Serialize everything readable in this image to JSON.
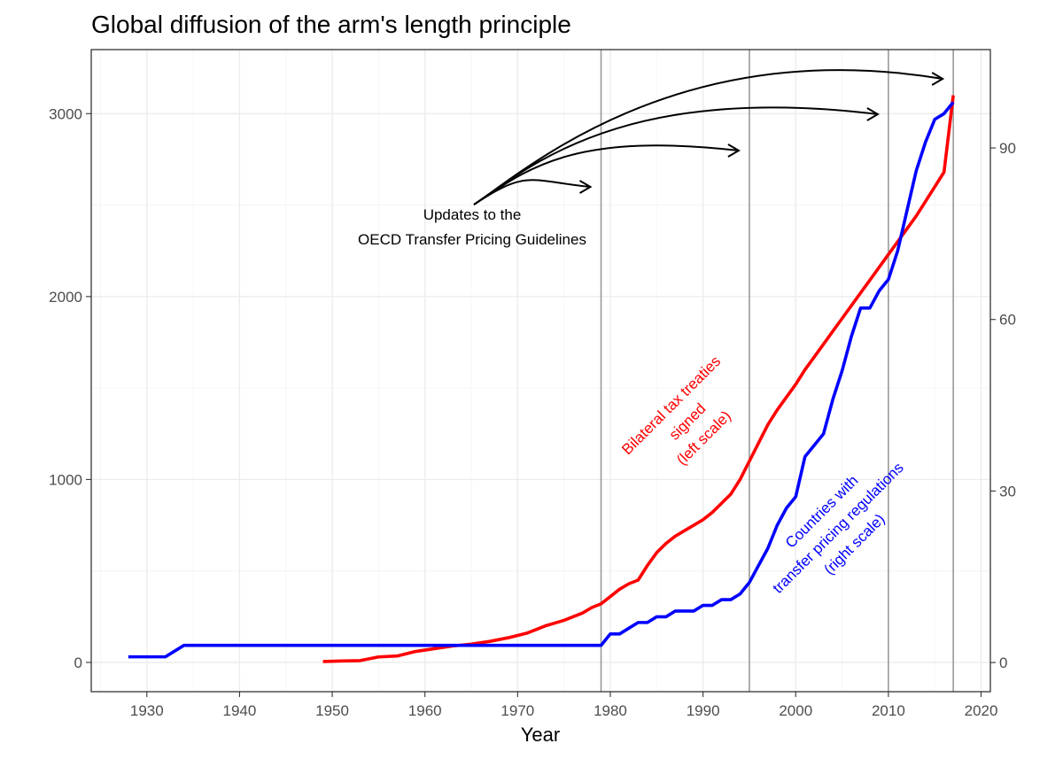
{
  "chart_data": {
    "type": "line",
    "title": "Global diffusion of the arm's length principle",
    "xlabel": "Year",
    "ylabel_left": "",
    "ylabel_right": "",
    "xlim": [
      1924,
      2021
    ],
    "ylim_left": [
      -160,
      3350
    ],
    "ylim_right": [
      -5.1,
      107.2
    ],
    "x_ticks": [
      1930,
      1940,
      1950,
      1960,
      1970,
      1980,
      1990,
      2000,
      2010,
      2020
    ],
    "y_left_ticks": [
      0,
      1000,
      2000,
      3000
    ],
    "y_right_ticks": [
      0,
      30,
      60,
      90
    ],
    "grid": true,
    "vertical_lines": [
      1979,
      1995,
      2010,
      2017
    ],
    "series": [
      {
        "name": "Bilateral tax treaties signed (left scale)",
        "axis": "left",
        "color": "#ff0000",
        "x": [
          1949,
          1951,
          1953,
          1955,
          1957,
          1959,
          1961,
          1963,
          1965,
          1967,
          1969,
          1971,
          1972,
          1973,
          1974,
          1975,
          1976,
          1977,
          1978,
          1979,
          1980,
          1981,
          1982,
          1983,
          1984,
          1985,
          1986,
          1987,
          1988,
          1989,
          1990,
          1991,
          1992,
          1993,
          1994,
          1995,
          1996,
          1997,
          1998,
          1999,
          2000,
          2001,
          2002,
          2003,
          2004,
          2005,
          2006,
          2007,
          2008,
          2009,
          2010,
          2011,
          2012,
          2013,
          2014,
          2015,
          2016,
          2017
        ],
        "values": [
          5,
          8,
          10,
          30,
          35,
          60,
          75,
          90,
          100,
          115,
          135,
          160,
          180,
          200,
          215,
          230,
          250,
          270,
          300,
          320,
          360,
          400,
          430,
          450,
          530,
          600,
          650,
          690,
          720,
          750,
          780,
          820,
          870,
          920,
          1000,
          1100,
          1200,
          1300,
          1380,
          1450,
          1520,
          1600,
          1670,
          1740,
          1810,
          1880,
          1950,
          2020,
          2090,
          2160,
          2230,
          2300,
          2370,
          2440,
          2520,
          2600,
          2680,
          3100
        ]
      },
      {
        "name": "Countries with transfer pricing regulations (right scale)",
        "axis": "right",
        "color": "#0000ff",
        "x": [
          1928,
          1932,
          1934,
          1979,
          1980,
          1981,
          1982,
          1983,
          1984,
          1985,
          1986,
          1987,
          1988,
          1989,
          1990,
          1991,
          1992,
          1993,
          1994,
          1995,
          1996,
          1997,
          1998,
          1999,
          2000,
          2001,
          2002,
          2003,
          2004,
          2005,
          2006,
          2007,
          2008,
          2009,
          2010,
          2011,
          2012,
          2013,
          2014,
          2015,
          2016,
          2017
        ],
        "values": [
          1,
          1,
          3,
          3,
          5,
          5,
          6,
          7,
          7,
          8,
          8,
          9,
          9,
          9,
          10,
          10,
          11,
          11,
          12,
          14,
          17,
          20,
          24,
          27,
          29,
          36,
          38,
          40,
          46,
          51,
          57,
          62,
          62,
          65,
          67,
          72,
          79,
          86,
          91,
          95,
          96,
          98
        ]
      }
    ],
    "annotations": {
      "updates_line1": "Updates to the",
      "updates_line2": "OECD Transfer Pricing Guidelines",
      "treaties_line1": "Bilateral tax treaties",
      "treaties_line2": "signed",
      "treaties_line3": "(left scale)",
      "regs_line1": "Countries with",
      "regs_line2": "transfer pricing regulations",
      "regs_line3": "(right scale)"
    },
    "colors": {
      "treaties": "#ff0000",
      "regulations": "#0000ff",
      "arrows": "#000000",
      "vlines": "#999999"
    }
  }
}
